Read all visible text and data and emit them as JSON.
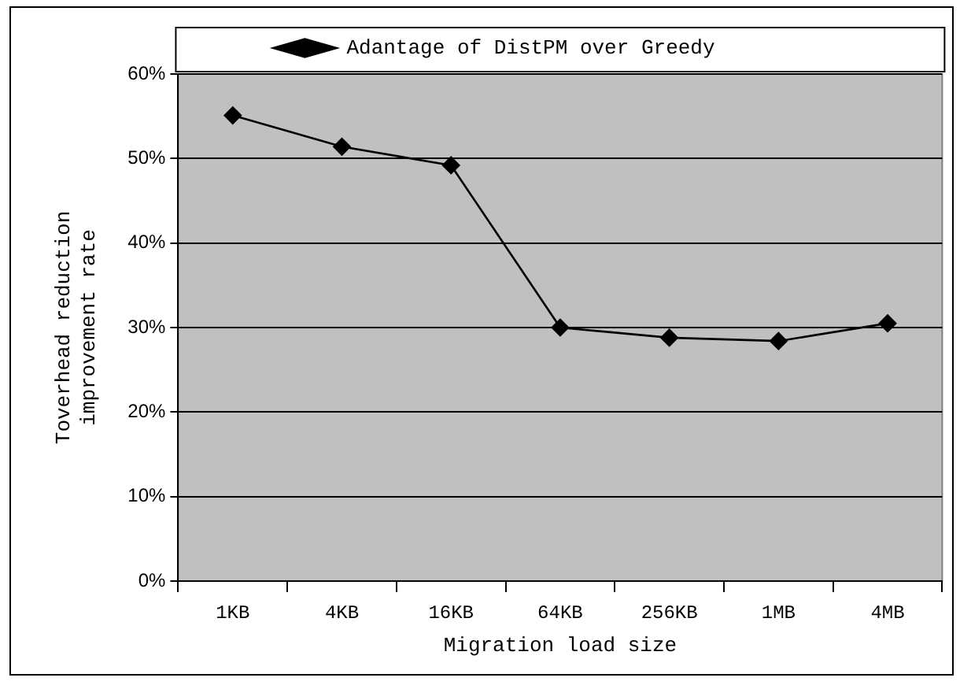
{
  "chart_data": {
    "type": "line",
    "xlabel": "Migration load size",
    "ylabel": "Toverhead reduction improvement rate",
    "categories": [
      "1KB",
      "4KB",
      "16KB",
      "64KB",
      "256KB",
      "1MB",
      "4MB"
    ],
    "series": [
      {
        "name": "Adantage of DistPM over Greedy",
        "color": "#000000",
        "values": [
          55.1,
          51.4,
          49.2,
          30.0,
          28.8,
          28.4,
          30.5
        ]
      }
    ],
    "ylim": [
      0,
      60
    ],
    "yticks": [
      {
        "value": 0,
        "label": "0%"
      },
      {
        "value": 10,
        "label": "10%"
      },
      {
        "value": 20,
        "label": "20%"
      },
      {
        "value": 30,
        "label": "30%"
      },
      {
        "value": 40,
        "label": "40%"
      },
      {
        "value": 50,
        "label": "50%"
      },
      {
        "value": 60,
        "label": "60%"
      }
    ],
    "grid": "y",
    "legend": "top",
    "marker": "diamond",
    "line_style": "solid"
  }
}
